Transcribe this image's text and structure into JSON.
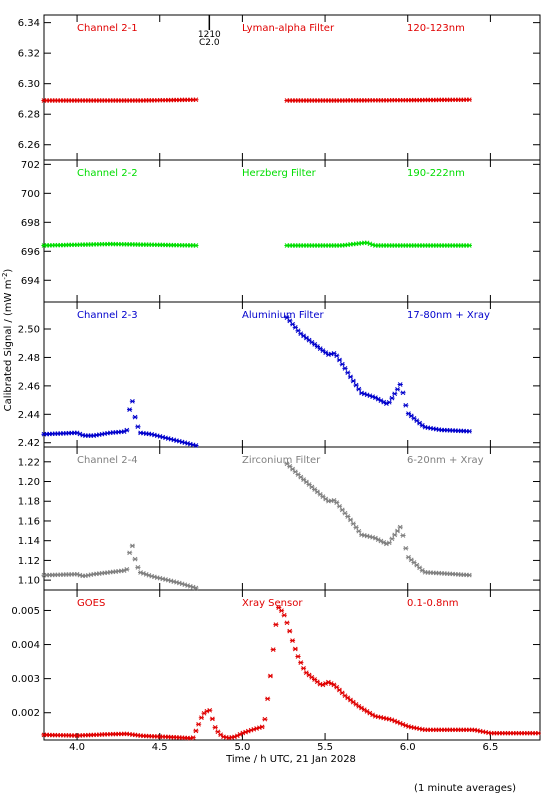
{
  "chart_data": {
    "type": "scatter",
    "shared_x_axis": {
      "xlabel": "Time / h UTC, 21 Jan 2028",
      "xlim": [
        3.8,
        6.8
      ],
      "xticks": [
        4.0,
        4.5,
        5.0,
        5.5,
        6.0,
        6.5
      ],
      "xtick_labels": [
        "4.0",
        "4.5",
        "5.0",
        "5.5",
        "6.0",
        "6.5"
      ]
    },
    "ylabel_shared": "Calibrated Signal / (mW m",
    "ylabel_superscript": "-2",
    "ylabel_close": ")",
    "footnote": "(1 minute averages)",
    "event_marker": {
      "x": 4.8,
      "label_top": "1210",
      "label_bottom": "C2.0"
    },
    "panels": [
      {
        "channel": "Channel 2-1",
        "filter": "Lyman-alpha Filter",
        "band": "120-123nm",
        "color": "#e00000",
        "ylim": [
          6.25,
          6.345
        ],
        "yticks": [
          6.26,
          6.28,
          6.3,
          6.32,
          6.34
        ],
        "ytick_labels": [
          "6.26",
          "6.28",
          "6.30",
          "6.32",
          "6.34"
        ],
        "segments": [
          {
            "x": [
              3.8,
              4.0,
              4.4,
              4.72
            ],
            "y": [
              6.289,
              6.289,
              6.289,
              6.2895
            ]
          },
          {
            "x": [
              5.27,
              5.6,
              6.0,
              6.38
            ],
            "y": [
              6.289,
              6.289,
              6.2892,
              6.2895
            ]
          }
        ]
      },
      {
        "channel": "Channel 2-2",
        "filter": "Herzberg Filter",
        "band": "190-222nm",
        "color": "#00dd00",
        "ylim": [
          692.5,
          702.3
        ],
        "yticks": [
          694,
          696,
          698,
          700,
          702
        ],
        "ytick_labels": [
          "694",
          "696",
          "698",
          "700",
          "702"
        ],
        "segments": [
          {
            "x": [
              3.8,
              4.2,
              4.72
            ],
            "y": [
              696.4,
              696.5,
              696.4
            ]
          },
          {
            "x": [
              5.27,
              5.6,
              5.75,
              5.8,
              6.0,
              6.38
            ],
            "y": [
              696.4,
              696.4,
              696.6,
              696.4,
              696.4,
              696.4
            ]
          }
        ]
      },
      {
        "channel": "Channel 2-3",
        "filter": "Aluminium Filter",
        "band": "17-80nm + Xray",
        "color": "#0000cc",
        "ylim": [
          2.417,
          2.519
        ],
        "yticks": [
          2.42,
          2.44,
          2.46,
          2.48,
          2.5
        ],
        "ytick_labels": [
          "2.42",
          "2.44",
          "2.46",
          "2.48",
          "2.50"
        ],
        "segments": [
          {
            "x": [
              3.8,
              4.0,
              4.04,
              4.1,
              4.2,
              4.3,
              4.33,
              4.34,
              4.36,
              4.38,
              4.45,
              4.55,
              4.62,
              4.72
            ],
            "y": [
              2.426,
              2.427,
              2.425,
              2.425,
              2.427,
              2.428,
              2.454,
              2.443,
              2.434,
              2.427,
              2.426,
              2.423,
              2.421,
              2.418
            ]
          },
          {
            "x": [
              5.27,
              5.35,
              5.45,
              5.52,
              5.56,
              5.6,
              5.65,
              5.72,
              5.8,
              5.88,
              5.93,
              5.96,
              5.98,
              6.0,
              6.05,
              6.1,
              6.2,
              6.38
            ],
            "y": [
              2.508,
              2.497,
              2.488,
              2.482,
              2.483,
              2.476,
              2.467,
              2.455,
              2.452,
              2.447,
              2.456,
              2.462,
              2.45,
              2.441,
              2.436,
              2.431,
              2.429,
              2.428
            ]
          }
        ]
      },
      {
        "channel": "Channel 2-4",
        "filter": "Zirconium Filter",
        "band": "6-20nm + Xray",
        "color": "#808080",
        "ylim": [
          1.09,
          1.235
        ],
        "yticks": [
          1.1,
          1.12,
          1.14,
          1.16,
          1.18,
          1.2,
          1.22
        ],
        "ytick_labels": [
          "1.10",
          "1.12",
          "1.14",
          "1.16",
          "1.18",
          "1.20",
          "1.22"
        ],
        "segments": [
          {
            "x": [
              3.8,
              4.0,
              4.04,
              4.1,
              4.2,
              4.3,
              4.33,
              4.34,
              4.36,
              4.38,
              4.45,
              4.55,
              4.62,
              4.72
            ],
            "y": [
              1.105,
              1.106,
              1.104,
              1.106,
              1.108,
              1.11,
              1.14,
              1.128,
              1.116,
              1.108,
              1.104,
              1.1,
              1.097,
              1.092
            ]
          },
          {
            "x": [
              5.27,
              5.35,
              5.45,
              5.52,
              5.56,
              5.6,
              5.65,
              5.72,
              5.8,
              5.88,
              5.93,
              5.96,
              5.98,
              6.0,
              6.05,
              6.1,
              6.2,
              6.38
            ],
            "y": [
              1.218,
              1.205,
              1.19,
              1.18,
              1.181,
              1.172,
              1.162,
              1.146,
              1.143,
              1.136,
              1.148,
              1.155,
              1.138,
              1.124,
              1.116,
              1.108,
              1.107,
              1.105
            ]
          }
        ]
      },
      {
        "channel": "GOES",
        "filter": "Xray Sensor",
        "band": "0.1-0.8nm",
        "color": "#e00000",
        "ylim": [
          0.0012,
          0.0056
        ],
        "yticks": [
          0.002,
          0.003,
          0.004,
          0.005
        ],
        "ytick_labels": [
          "0.002",
          "0.003",
          "0.004",
          "0.005"
        ],
        "segments": [
          {
            "x": [
              3.8,
              4.0,
              4.2,
              4.3,
              4.4,
              4.5,
              4.6,
              4.66,
              4.7,
              4.73,
              4.76,
              4.8,
              4.84,
              4.88,
              4.92,
              4.96,
              5.0,
              5.06,
              5.13,
              5.15,
              5.17,
              5.2,
              5.22,
              5.25,
              5.28,
              5.31,
              5.34,
              5.38,
              5.43,
              5.48,
              5.52,
              5.56,
              5.62,
              5.7,
              5.8,
              5.9,
              6.0,
              6.1,
              6.2,
              6.3,
              6.4,
              6.5,
              6.6,
              6.7,
              6.8
            ],
            "y": [
              0.00135,
              0.00133,
              0.00137,
              0.00138,
              0.00132,
              0.0013,
              0.00128,
              0.00126,
              0.00125,
              0.0016,
              0.00195,
              0.0021,
              0.0015,
              0.0013,
              0.00126,
              0.0013,
              0.0014,
              0.0015,
              0.0016,
              0.0023,
              0.0031,
              0.0045,
              0.0051,
              0.0049,
              0.0045,
              0.004,
              0.0036,
              0.0032,
              0.003,
              0.0028,
              0.0029,
              0.0028,
              0.0025,
              0.0022,
              0.0019,
              0.0018,
              0.0016,
              0.0015,
              0.0015,
              0.0015,
              0.0015,
              0.0014,
              0.0014,
              0.0014,
              0.0014
            ]
          }
        ]
      }
    ]
  }
}
